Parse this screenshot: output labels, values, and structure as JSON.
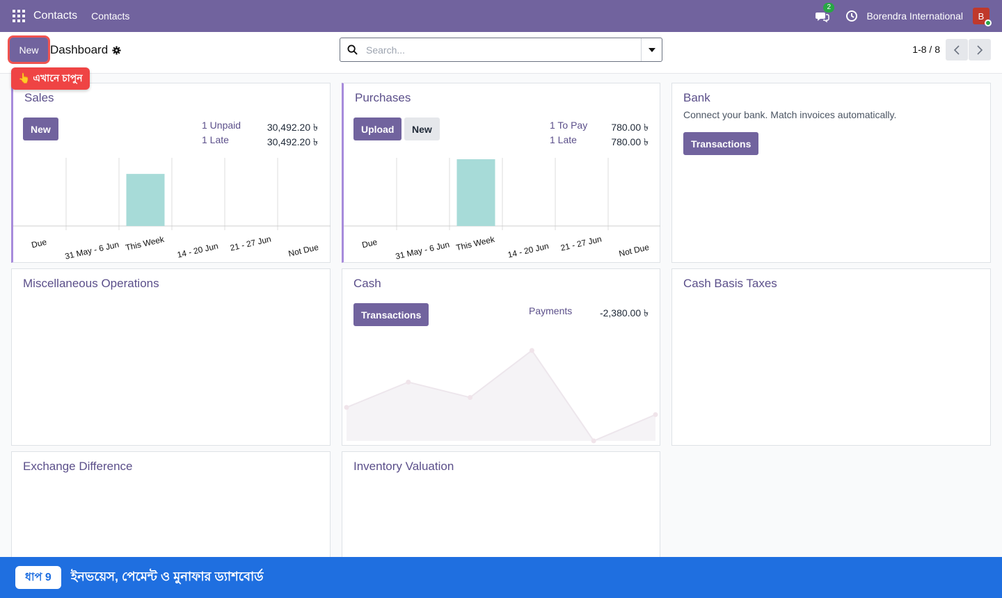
{
  "navbar": {
    "brand": "Contacts",
    "menu": "Contacts",
    "chat_count": "2",
    "company": "Borendra International",
    "avatar_letter": "B"
  },
  "control": {
    "new_label": "New",
    "title": "Dashboard",
    "search_placeholder": "Search...",
    "pager": "1-8 / 8"
  },
  "tip": "👆 এখানে চাপুন",
  "cards": {
    "sales": {
      "title": "Sales",
      "new_label": "New",
      "stats": [
        {
          "label": "1 Unpaid",
          "value": "30,492.20 ৳"
        },
        {
          "label": "1 Late",
          "value": "30,492.20 ৳"
        }
      ]
    },
    "purchases": {
      "title": "Purchases",
      "upload_label": "Upload",
      "new_label": "New",
      "stats": [
        {
          "label": "1 To Pay",
          "value": "780.00 ৳"
        },
        {
          "label": "1 Late",
          "value": "780.00 ৳"
        }
      ]
    },
    "bank": {
      "title": "Bank",
      "subtitle": "Connect your bank. Match invoices automatically.",
      "button": "Transactions"
    },
    "misc": {
      "title": "Miscellaneous Operations"
    },
    "cash": {
      "title": "Cash",
      "button": "Transactions",
      "stat_label": "Payments",
      "stat_value": "-2,380.00 ৳"
    },
    "cash_basis": {
      "title": "Cash Basis Taxes"
    },
    "exchange": {
      "title": "Exchange Difference"
    },
    "inventory": {
      "title": "Inventory Valuation"
    }
  },
  "chart_data": [
    {
      "type": "bar",
      "name": "sales-aging",
      "categories": [
        "Due",
        "31 May - 6 Jun",
        "This Week",
        "14 - 20 Jun",
        "21 - 27 Jun",
        "Not Due"
      ],
      "values": [
        0,
        0,
        0.78,
        0,
        0,
        0
      ],
      "color": "#a7dbd8"
    },
    {
      "type": "bar",
      "name": "purchases-aging",
      "categories": [
        "Due",
        "31 May - 6 Jun",
        "This Week",
        "14 - 20 Jun",
        "21 - 27 Jun",
        "Not Due"
      ],
      "values": [
        0,
        0,
        1.0,
        0,
        0,
        0
      ],
      "color": "#a7dbd8"
    },
    {
      "type": "area",
      "name": "cash-trend",
      "values": [
        0.37,
        0.65,
        0.48,
        1.0,
        0.0,
        0.29
      ],
      "color": "#ece8ee"
    }
  ],
  "banner": {
    "step": "ধাপ 9",
    "text": "ইনভয়েস, পেমেন্ট ও মুনাফার ড্যাশবোর্ড"
  }
}
